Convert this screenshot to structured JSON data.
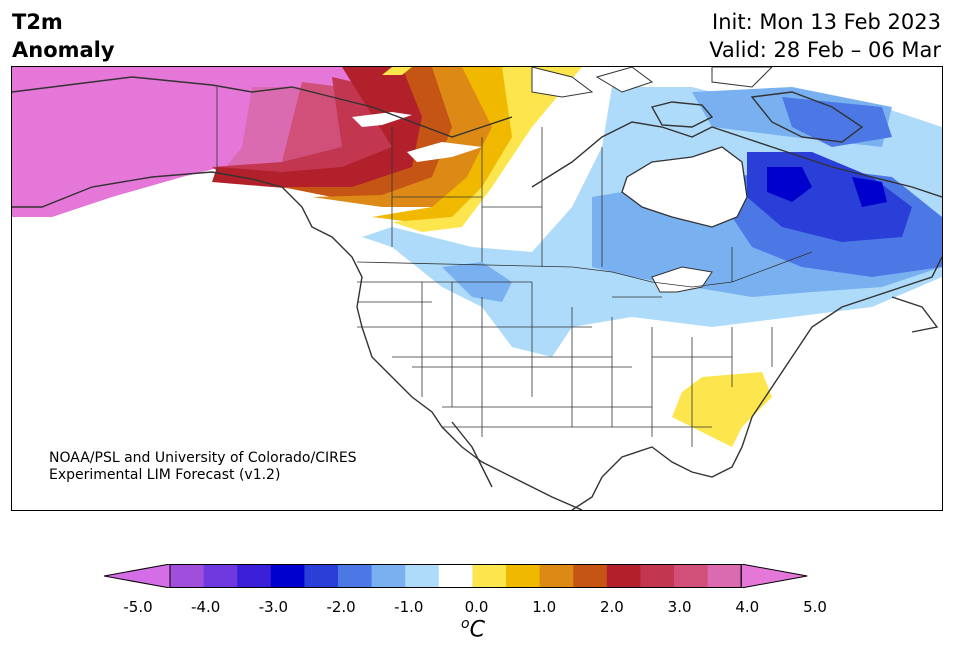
{
  "header": {
    "title_line1": "T2m",
    "title_line2": "Anomaly",
    "init": "Init: Mon 13 Feb 2023",
    "valid": "Valid: 28 Feb – 06 Mar"
  },
  "credit": {
    "line1": "NOAA/PSL and University of Colorado/CIRES",
    "line2": "Experimental LIM Forecast (v1.2)"
  },
  "colorbar": {
    "unit_symbol": "o",
    "unit_letter": "C",
    "tick_labels": [
      "-5.0",
      "-4.0",
      "-3.0",
      "-2.0",
      "-1.0",
      "0.0",
      "1.0",
      "2.0",
      "3.0",
      "4.0",
      "5.0"
    ],
    "levels": [
      -5.0,
      -4.5,
      -4.0,
      -3.5,
      -3.0,
      -2.5,
      -2.0,
      -1.5,
      -1.0,
      -0.5,
      0.5,
      1.0,
      1.5,
      2.0,
      2.5,
      3.0,
      3.5,
      4.0,
      4.5,
      5.0
    ],
    "colors": [
      "#d46ee6",
      "#9f4fdb",
      "#6e3adf",
      "#3b1fd6",
      "#0000cd",
      "#2a3fd8",
      "#4c78e5",
      "#79b0f0",
      "#aedbfa",
      "#ffffff",
      "#fde54d",
      "#f1b800",
      "#dc8a15",
      "#c55515",
      "#b2202b",
      "#c23650",
      "#d05079",
      "#db6bb0",
      "#e577d9"
    ]
  },
  "colors": {
    "land": "#ffffff",
    "coast": "#333333"
  }
}
